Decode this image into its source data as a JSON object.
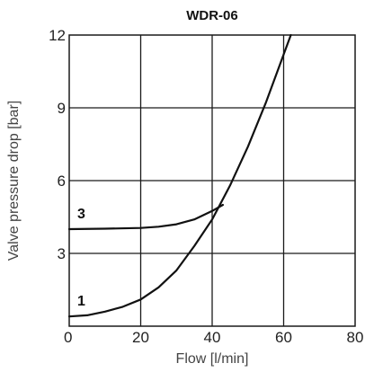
{
  "chart_data": {
    "type": "line",
    "title": "WDR-06",
    "xlabel": "Flow [l/min]",
    "ylabel": "Valve pressure drop [bar]",
    "xlim": [
      0,
      80
    ],
    "ylim": [
      0,
      12
    ],
    "xticks": [
      "0",
      "20",
      "40",
      "60",
      "80"
    ],
    "yticks": [
      "3",
      "6",
      "9",
      "12"
    ],
    "grid": true,
    "series": [
      {
        "name": "1",
        "x": [
          0,
          5,
          10,
          15,
          20,
          25,
          30,
          35,
          40,
          45,
          50,
          55,
          60,
          62
        ],
        "y": [
          0.4,
          0.45,
          0.6,
          0.8,
          1.1,
          1.6,
          2.3,
          3.3,
          4.4,
          5.8,
          7.4,
          9.2,
          11.2,
          12
        ]
      },
      {
        "name": "3",
        "x": [
          0,
          10,
          20,
          25,
          30,
          35,
          40,
          43
        ],
        "y": [
          4.0,
          4.02,
          4.05,
          4.1,
          4.2,
          4.4,
          4.75,
          5.0
        ]
      }
    ]
  }
}
